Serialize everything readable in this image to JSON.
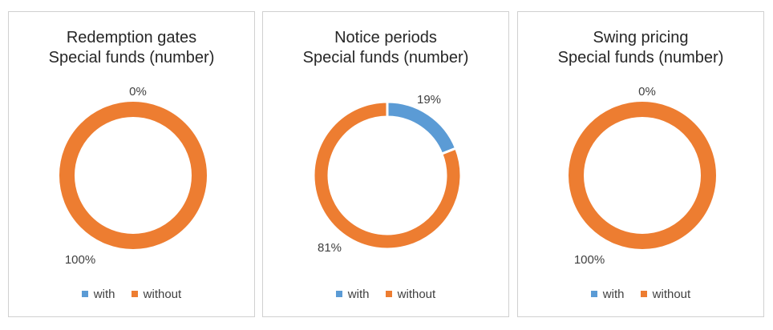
{
  "colors": {
    "with": "#5B9BD5",
    "without": "#ED7D31"
  },
  "chart_data": [
    {
      "type": "pie",
      "title": [
        "Redemption gates",
        "Special funds (number)"
      ],
      "categories": [
        "with",
        "without"
      ],
      "values": [
        0,
        100
      ],
      "data_labels": [
        "0%",
        "100%"
      ],
      "legend": "bottom",
      "legend_entries": [
        "with",
        "without"
      ]
    },
    {
      "type": "pie",
      "title": [
        "Notice periods",
        "Special funds (number)"
      ],
      "categories": [
        "with",
        "without"
      ],
      "values": [
        19,
        81
      ],
      "data_labels": [
        "19%",
        "81%"
      ],
      "legend": "bottom",
      "legend_entries": [
        "with",
        "without"
      ]
    },
    {
      "type": "pie",
      "title": [
        "Swing pricing",
        "Special funds (number)"
      ],
      "categories": [
        "with",
        "without"
      ],
      "values": [
        0,
        100
      ],
      "data_labels": [
        "0%",
        "100%"
      ],
      "legend": "bottom",
      "legend_entries": [
        "with",
        "without"
      ]
    }
  ]
}
